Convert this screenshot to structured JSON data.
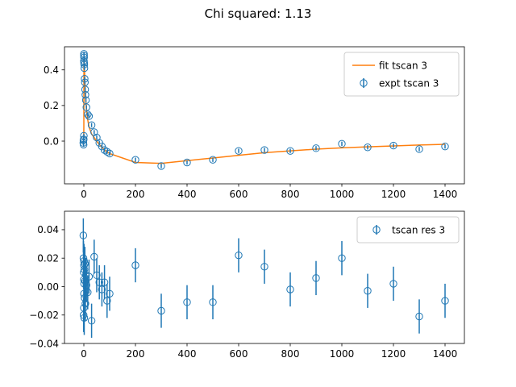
{
  "figure": {
    "suptitle": "Chi squared: 1.13"
  },
  "colors": {
    "expt": "#1f77b4",
    "fit": "#ff7f0e"
  },
  "chart_data": [
    {
      "type": "line",
      "panel": "top",
      "xlim": [
        -75,
        1475
      ],
      "ylim": [
        -0.24,
        0.53
      ],
      "xticks": [
        0,
        200,
        400,
        600,
        800,
        1000,
        1200,
        1400
      ],
      "yticks": [
        0.0,
        0.2,
        0.4
      ],
      "ytick_labels": [
        "0.0",
        "0.2",
        "0.4"
      ],
      "legend_position": "upper right",
      "series": [
        {
          "name": "fit tscan 3",
          "kind": "line",
          "color": "#ff7f0e",
          "x": [
            -1,
            -0.5,
            0,
            0.3,
            0.6,
            1,
            1.5,
            2,
            3,
            4,
            5,
            6,
            8,
            10,
            15,
            20,
            30,
            40,
            50,
            60,
            70,
            80,
            90,
            100,
            200,
            300,
            400,
            500,
            600,
            700,
            800,
            900,
            1000,
            1100,
            1200,
            1300,
            1400
          ],
          "y": [
            0.0,
            0.0,
            0.08,
            0.42,
            0.47,
            0.46,
            0.44,
            0.42,
            0.38,
            0.34,
            0.3,
            0.27,
            0.22,
            0.18,
            0.12,
            0.08,
            0.04,
            0.02,
            0.0,
            -0.02,
            -0.035,
            -0.05,
            -0.06,
            -0.07,
            -0.12,
            -0.125,
            -0.11,
            -0.095,
            -0.08,
            -0.065,
            -0.055,
            -0.045,
            -0.038,
            -0.032,
            -0.027,
            -0.022,
            -0.018
          ]
        },
        {
          "name": "expt tscan 3",
          "kind": "errorbar",
          "color": "#1f77b4",
          "x": [
            -2,
            -1.5,
            -1,
            -0.5,
            0,
            0.2,
            0.4,
            0.6,
            0.8,
            1,
            1.5,
            2,
            3,
            4,
            5,
            6,
            8,
            10,
            15,
            20,
            30,
            40,
            50,
            60,
            70,
            80,
            90,
            100,
            200,
            300,
            400,
            500,
            600,
            700,
            800,
            900,
            1000,
            1100,
            1200,
            1300,
            1400
          ],
          "y": [
            -0.01,
            0.005,
            -0.02,
            0.01,
            0.03,
            0.45,
            0.49,
            0.48,
            0.47,
            0.44,
            0.43,
            0.41,
            0.35,
            0.33,
            0.29,
            0.26,
            0.23,
            0.19,
            0.15,
            0.14,
            0.09,
            0.05,
            0.02,
            -0.01,
            -0.03,
            -0.05,
            -0.06,
            -0.07,
            -0.105,
            -0.14,
            -0.12,
            -0.105,
            -0.055,
            -0.05,
            -0.055,
            -0.04,
            -0.015,
            -0.035,
            -0.025,
            -0.045,
            -0.03
          ],
          "yerr": 0.012
        }
      ]
    },
    {
      "type": "scatter",
      "panel": "bottom",
      "xlim": [
        -75,
        1475
      ],
      "ylim": [
        -0.04,
        0.053
      ],
      "xticks": [
        0,
        200,
        400,
        600,
        800,
        1000,
        1200,
        1400
      ],
      "yticks": [
        -0.04,
        -0.02,
        0.0,
        0.02,
        0.04
      ],
      "ytick_labels": [
        "−0.04",
        "−0.02",
        "0.00",
        "0.02",
        "0.04"
      ],
      "legend_position": "upper right",
      "series": [
        {
          "name": "tscan res 3",
          "kind": "errorbar",
          "color": "#1f77b4",
          "x": [
            -2,
            -1.5,
            -1,
            -0.5,
            0,
            0.2,
            0.4,
            0.6,
            0.8,
            1,
            1.5,
            2,
            3,
            4,
            5,
            6,
            8,
            10,
            15,
            20,
            30,
            40,
            50,
            60,
            70,
            80,
            90,
            100,
            200,
            300,
            400,
            500,
            600,
            700,
            800,
            900,
            1000,
            1100,
            1200,
            1300,
            1400
          ],
          "y": [
            0.036,
            0.02,
            -0.02,
            0.01,
            -0.015,
            0.005,
            0.015,
            -0.005,
            0.018,
            0.002,
            -0.022,
            0.012,
            -0.008,
            0.016,
            0.004,
            -0.012,
            0.008,
            0.001,
            -0.004,
            0.007,
            -0.024,
            0.021,
            0.008,
            0.003,
            -0.002,
            0.003,
            -0.01,
            -0.005,
            0.015,
            -0.017,
            -0.011,
            -0.011,
            0.022,
            0.014,
            -0.002,
            0.006,
            0.02,
            -0.003,
            0.002,
            -0.021,
            -0.01
          ],
          "yerr": 0.012
        }
      ]
    }
  ]
}
